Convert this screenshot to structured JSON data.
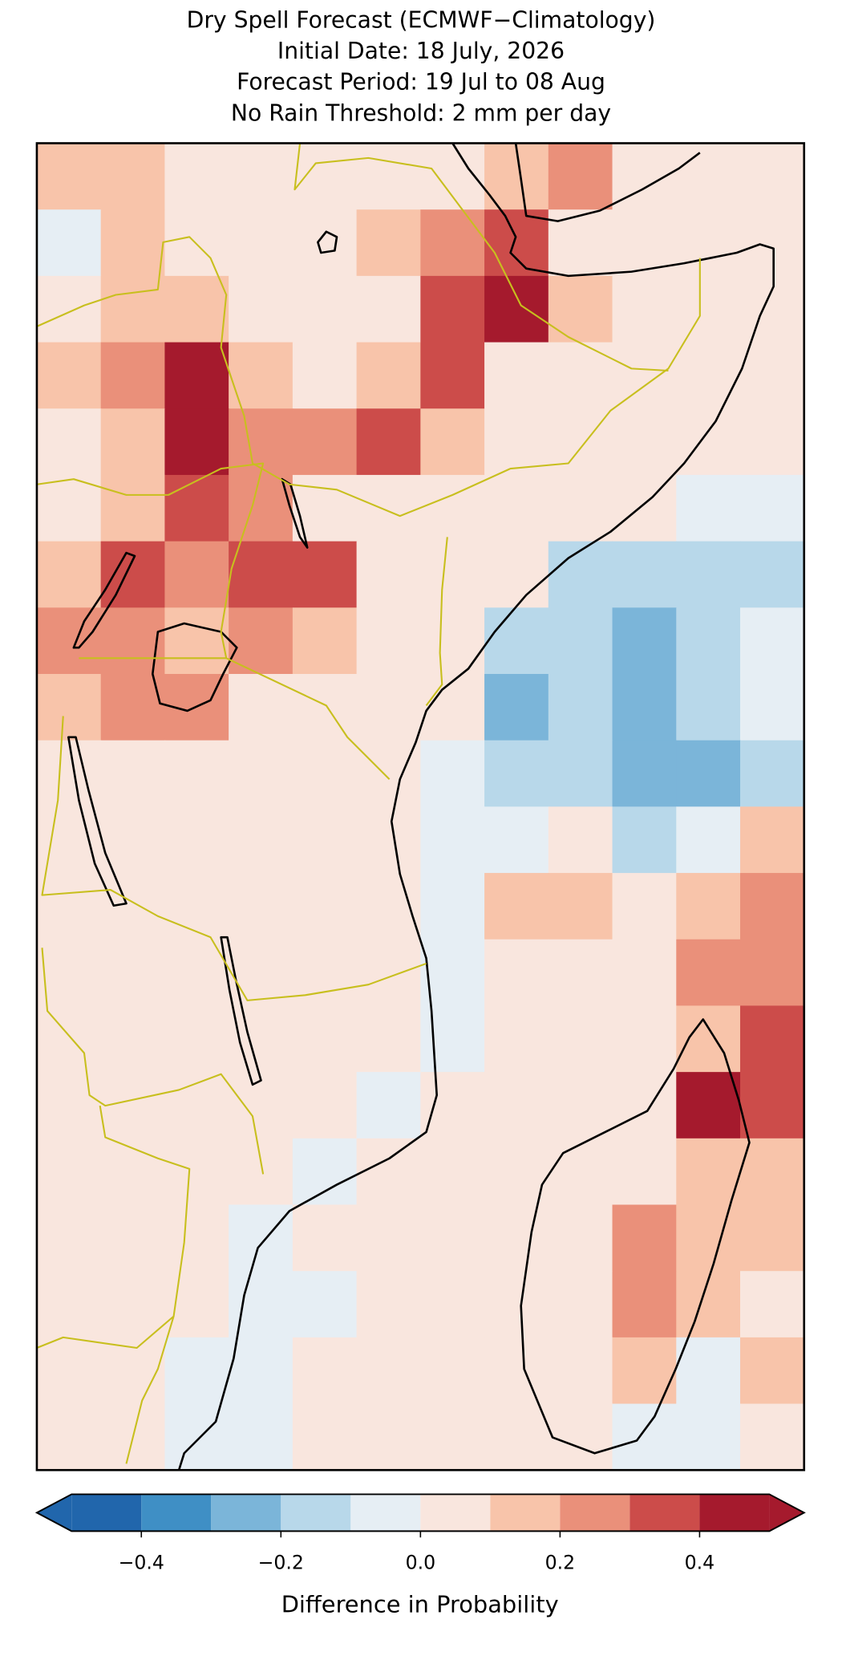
{
  "chart_data": {
    "type": "heatmap",
    "title": [
      "Dry Spell Forecast (ECMWF−Climatology)",
      "Initial Date: 18 July, 2026",
      "Forecast Period: 19 Jul to 08 Aug",
      "No Rain Threshold: 2 mm per day"
    ],
    "values": [
      [
        0.15,
        0.15,
        0.05,
        0.05,
        0.05,
        0.05,
        0.05,
        0.15,
        0.25,
        0.05,
        0.05,
        0.05
      ],
      [
        -0.05,
        0.15,
        0.05,
        0.05,
        0.05,
        0.15,
        0.25,
        0.35,
        0.05,
        0.05,
        0.05,
        0.05
      ],
      [
        0.05,
        0.15,
        0.15,
        0.05,
        0.05,
        0.05,
        0.35,
        0.45,
        0.15,
        0.05,
        0.05,
        0.05
      ],
      [
        0.15,
        0.25,
        0.45,
        0.15,
        0.05,
        0.15,
        0.35,
        0.05,
        0.05,
        0.05,
        0.05,
        0.05
      ],
      [
        0.05,
        0.15,
        0.45,
        0.25,
        0.25,
        0.35,
        0.15,
        0.05,
        0.05,
        0.05,
        0.05,
        0.05
      ],
      [
        0.05,
        0.15,
        0.35,
        0.25,
        0.05,
        0.05,
        0.05,
        0.05,
        0.05,
        0.05,
        -0.05,
        -0.05
      ],
      [
        0.15,
        0.35,
        0.25,
        0.35,
        0.35,
        0.05,
        0.05,
        0.05,
        -0.15,
        -0.15,
        -0.15,
        -0.15
      ],
      [
        0.25,
        0.25,
        0.15,
        0.25,
        0.15,
        0.05,
        0.05,
        -0.15,
        -0.15,
        -0.25,
        -0.15,
        -0.05
      ],
      [
        0.15,
        0.25,
        0.25,
        0.05,
        0.05,
        0.05,
        0.05,
        -0.25,
        -0.15,
        -0.25,
        -0.15,
        -0.05
      ],
      [
        0.05,
        0.05,
        0.05,
        0.05,
        0.05,
        0.05,
        -0.05,
        -0.15,
        -0.15,
        -0.25,
        -0.25,
        -0.15
      ],
      [
        0.05,
        0.05,
        0.05,
        0.05,
        0.05,
        0.05,
        -0.05,
        -0.05,
        0.05,
        -0.15,
        -0.05,
        0.15
      ],
      [
        0.05,
        0.05,
        0.05,
        0.05,
        0.05,
        0.05,
        -0.05,
        0.15,
        0.15,
        0.05,
        0.15,
        0.25
      ],
      [
        0.05,
        0.05,
        0.05,
        0.05,
        0.05,
        0.05,
        -0.05,
        0.05,
        0.05,
        0.05,
        0.25,
        0.25
      ],
      [
        0.05,
        0.05,
        0.05,
        0.05,
        0.05,
        0.05,
        -0.05,
        0.05,
        0.05,
        0.05,
        0.15,
        0.35
      ],
      [
        0.05,
        0.05,
        0.05,
        0.05,
        0.05,
        -0.05,
        0.05,
        0.05,
        0.05,
        0.05,
        0.45,
        0.35
      ],
      [
        0.05,
        0.05,
        0.05,
        0.05,
        -0.05,
        0.05,
        0.05,
        0.05,
        0.05,
        0.05,
        0.15,
        0.15
      ],
      [
        0.05,
        0.05,
        0.05,
        -0.05,
        0.05,
        0.05,
        0.05,
        0.05,
        0.05,
        0.25,
        0.15,
        0.15
      ],
      [
        0.05,
        0.05,
        0.05,
        -0.05,
        -0.05,
        0.05,
        0.05,
        0.05,
        0.05,
        0.25,
        0.15,
        0.05
      ],
      [
        0.05,
        0.05,
        -0.05,
        -0.05,
        0.05,
        0.05,
        0.05,
        0.05,
        0.05,
        0.15,
        -0.05,
        0.15
      ],
      [
        0.05,
        0.05,
        -0.05,
        -0.05,
        0.05,
        0.05,
        0.05,
        0.05,
        0.05,
        -0.05,
        -0.05,
        0.05
      ]
    ],
    "colorbar": {
      "label": "Difference in Probability",
      "bounds": [
        -0.5,
        -0.4,
        -0.3,
        -0.2,
        -0.1,
        0,
        0.1,
        0.2,
        0.3,
        0.4,
        0.5
      ],
      "colors": [
        "#2166ac",
        "#3f8fc5",
        "#7bb5d9",
        "#b8d8ea",
        "#e6eef4",
        "#f9e6de",
        "#f8c4aa",
        "#ea907a",
        "#cc4c4a",
        "#a51a2d"
      ],
      "extend": "both",
      "ticks": [
        {
          "value": -0.4,
          "label": "−0.4"
        },
        {
          "value": -0.2,
          "label": "−0.2"
        },
        {
          "value": 0,
          "label": "0.0"
        },
        0.2,
        0.4
      ]
    }
  }
}
